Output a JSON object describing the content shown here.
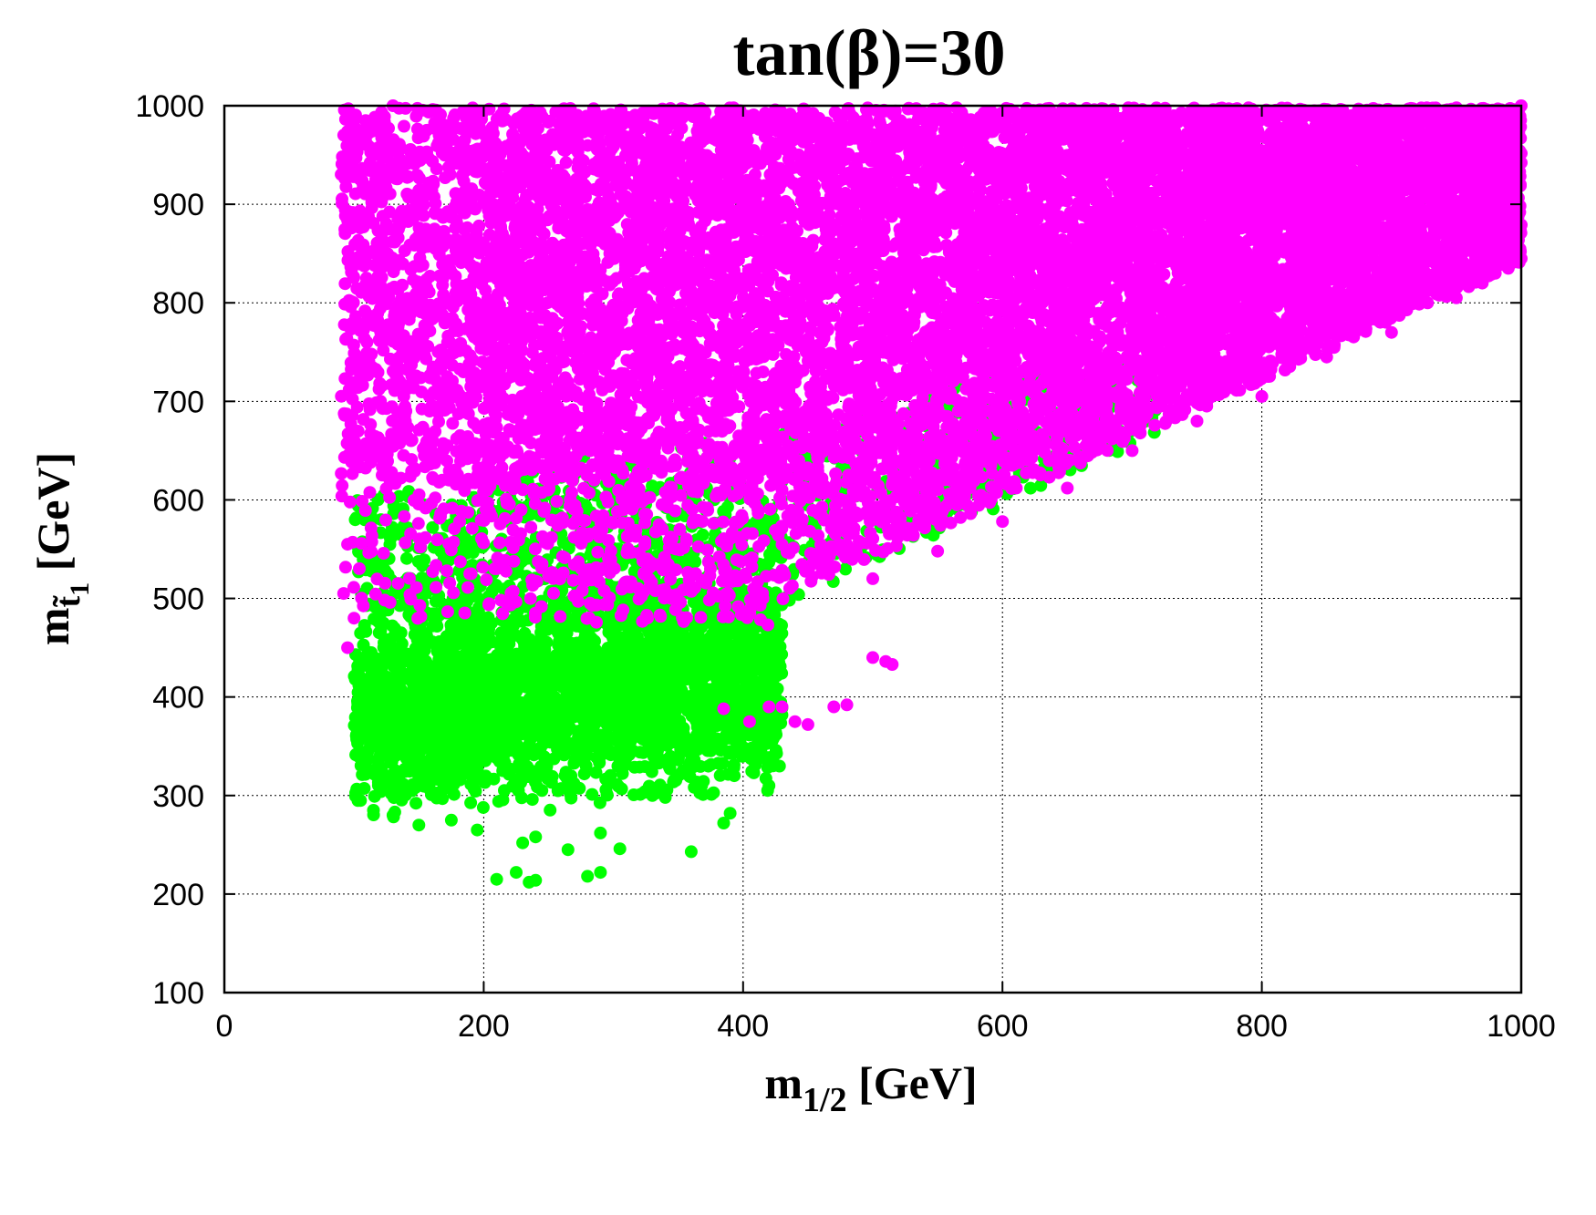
{
  "chart_data": {
    "type": "scatter",
    "title": "tan(β)=30",
    "xlabel": {
      "main": "m",
      "sub": "1/2",
      "unit": " [GeV]"
    },
    "ylabel": {
      "main": "m",
      "sub": "t̃",
      "sub2": "1",
      "unit": " [GeV]"
    },
    "xlim": [
      0,
      1000
    ],
    "ylim": [
      100,
      1000
    ],
    "xticks": [
      0,
      200,
      400,
      600,
      800,
      1000
    ],
    "yticks": [
      100,
      200,
      300,
      400,
      500,
      600,
      700,
      800,
      900,
      1000
    ],
    "grid": true,
    "colors": {
      "green": "#00ff00",
      "magenta": "#ff00ff",
      "axis": "#000000"
    },
    "series": [
      {
        "color": "#00ff00",
        "region": {
          "x_range": [
            100,
            430
          ],
          "y_center": 400,
          "y_spread": 70,
          "upper_bound": "y < 1.4*x + 420",
          "min_point": [
            230,
            210
          ]
        },
        "points": [
          [
            210,
            215
          ],
          [
            225,
            222
          ],
          [
            235,
            212
          ],
          [
            240,
            214
          ],
          [
            280,
            218
          ],
          [
            290,
            222
          ],
          [
            230,
            252
          ],
          [
            240,
            258
          ],
          [
            265,
            245
          ],
          [
            290,
            262
          ],
          [
            305,
            246
          ],
          [
            360,
            243
          ],
          [
            385,
            272
          ],
          [
            390,
            282
          ],
          [
            420,
            310
          ],
          [
            423,
            330
          ],
          [
            340,
            298
          ],
          [
            330,
            300
          ],
          [
            150,
            270
          ],
          [
            130,
            280
          ],
          [
            115,
            285
          ],
          [
            105,
            295
          ],
          [
            175,
            275
          ],
          [
            195,
            265
          ],
          [
            120,
            370
          ],
          [
            110,
            395
          ],
          [
            105,
            420
          ],
          [
            115,
            440
          ],
          [
            200,
            450
          ],
          [
            210,
            440
          ]
        ]
      },
      {
        "color": "#ff00ff",
        "region": {
          "x_range": [
            90,
            1000
          ],
          "lower_bound": "y > 0.6*x + 235 and y > 460",
          "y_max": 1000
        },
        "points": [
          [
            95,
            450
          ],
          [
            100,
            480
          ],
          [
            92,
            505
          ],
          [
            100,
            970
          ],
          [
            110,
            960
          ],
          [
            95,
            555
          ],
          [
            440,
            375
          ],
          [
            450,
            372
          ],
          [
            470,
            390
          ],
          [
            480,
            392
          ],
          [
            500,
            440
          ],
          [
            510,
            436
          ],
          [
            430,
            390
          ],
          [
            420,
            390
          ],
          [
            515,
            433
          ],
          [
            385,
            388
          ],
          [
            405,
            375
          ],
          [
            1000,
            845
          ],
          [
            990,
            835
          ],
          [
            980,
            830
          ],
          [
            970,
            820
          ],
          [
            950,
            805
          ],
          [
            900,
            770
          ],
          [
            850,
            745
          ],
          [
            800,
            705
          ],
          [
            750,
            680
          ],
          [
            700,
            650
          ],
          [
            650,
            612
          ],
          [
            600,
            578
          ],
          [
            550,
            548
          ],
          [
            500,
            520
          ],
          [
            130,
            1000
          ],
          [
            1000,
            1000
          ]
        ]
      }
    ]
  }
}
